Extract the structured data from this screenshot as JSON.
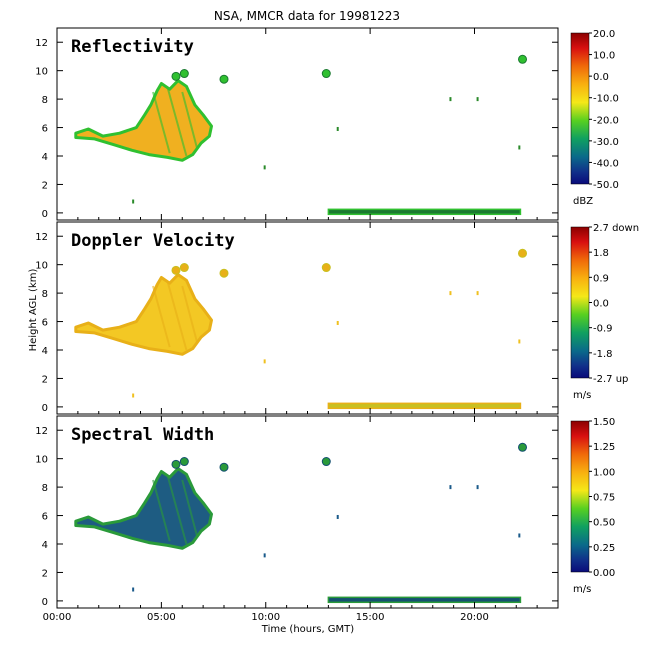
{
  "title": "NSA, MMCR data for 19981223",
  "ylabel": "Height AGL (km)",
  "xlabel": "Time (hours, GMT)",
  "chart_data": {
    "type": "heatmap",
    "x_ticks": [
      "00:00",
      "05:00",
      "10:00",
      "15:00",
      "20:00"
    ],
    "xlim": [
      0,
      24
    ],
    "ylim": [
      -0.5,
      13
    ],
    "y_ticks": [
      "0",
      "2",
      "4",
      "6",
      "8",
      "10",
      "12"
    ],
    "panels": [
      {
        "name": "Reflectivity",
        "unit": "dBZ",
        "colorbar_ticks": [
          "20.0",
          "10.0",
          "0.0",
          "-10.0",
          "-20.0",
          "-30.0",
          "-40.0",
          "-50.0"
        ],
        "colors": {
          "fill": "#f0b020",
          "edge": "#30c030",
          "low": "#1a7a30",
          "dots": "#2a8a2a"
        }
      },
      {
        "name": "Doppler Velocity",
        "unit": "m/s",
        "colorbar_ticks": [
          "2.7 down",
          "1.8",
          "0.9",
          "0.0",
          "-0.9",
          "-1.8",
          "-2.7 up"
        ],
        "colors": {
          "fill": "#f3c824",
          "edge": "#e8b018",
          "low": "#c8c020",
          "dots": "#f0c020"
        }
      },
      {
        "name": "Spectral Width",
        "unit": "m/s",
        "colorbar_ticks": [
          "1.50",
          "1.25",
          "1.00",
          "0.75",
          "0.50",
          "0.25",
          "0.00"
        ],
        "colors": {
          "fill": "#1e5c82",
          "edge": "#2a9a3a",
          "low": "#145070",
          "dots": "#1a5a8a"
        }
      }
    ]
  }
}
